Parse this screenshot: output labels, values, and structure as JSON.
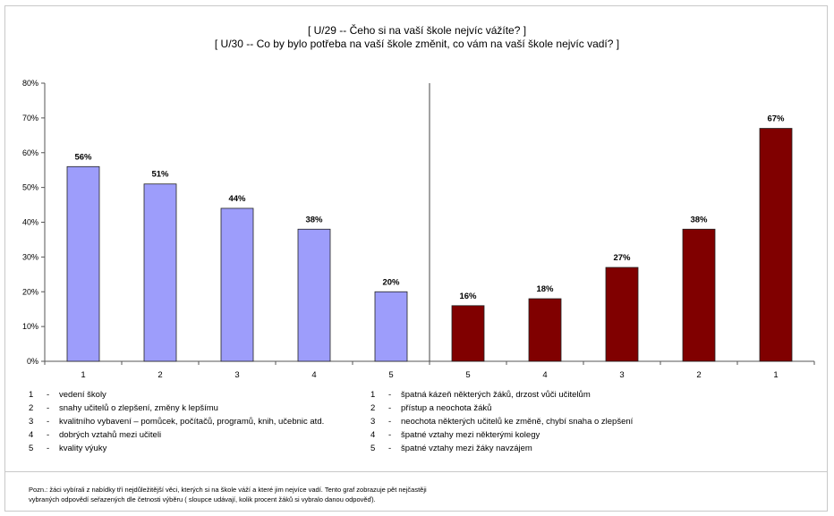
{
  "titles": {
    "line1": "[ U/29 -- Čeho si na vaší škole nejvíc vážíte? ]",
    "line2": "[ U/30 -- Co by bylo potřeba na vaší škole změnit, co vám na vaší škole nejvíc vadí? ]"
  },
  "chart_data": {
    "type": "bar",
    "ylim": [
      0,
      80
    ],
    "yticks": [
      "0%",
      "10%",
      "20%",
      "30%",
      "40%",
      "50%",
      "60%",
      "70%",
      "80%"
    ],
    "categories": [
      "1",
      "2",
      "3",
      "4",
      "5",
      "5",
      "4",
      "3",
      "2",
      "1"
    ],
    "series": [
      {
        "values": [
          56,
          51,
          44,
          38,
          20,
          null,
          null,
          null,
          null,
          null
        ],
        "labels": [
          "56%",
          "51%",
          "44%",
          "38%",
          "20%",
          "",
          "",
          "",
          "",
          ""
        ],
        "color": "#9d9dfb"
      },
      {
        "values": [
          null,
          null,
          null,
          null,
          null,
          16,
          18,
          27,
          38,
          67
        ],
        "labels": [
          "",
          "",
          "",
          "",
          "",
          "16%",
          "18%",
          "27%",
          "38%",
          "67%"
        ],
        "color": "#800000"
      }
    ],
    "grid": false
  },
  "legend_left": [
    {
      "num": "1",
      "text": "vedení školy"
    },
    {
      "num": "2",
      "text": "snahy učitelů o zlepšení, změny k lepšímu"
    },
    {
      "num": "3",
      "text": "kvalitního vybavení – pomůcek, počítačů, programů, knih, učebnic atd."
    },
    {
      "num": "4",
      "text": "dobrých vztahů mezi učiteli"
    },
    {
      "num": "5",
      "text": "kvality výuky"
    }
  ],
  "legend_right": [
    {
      "num": "1",
      "text": "špatná kázeň některých žáků, drzost vůči učitelům"
    },
    {
      "num": "2",
      "text": "přístup a neochota žáků"
    },
    {
      "num": "3",
      "text": "neochota některých učitelů ke změně, chybí snaha o zlepšení"
    },
    {
      "num": "4",
      "text": "špatné vztahy mezi některými kolegy"
    },
    {
      "num": "5",
      "text": "špatné vztahy mezi žáky navzájem"
    }
  ],
  "note": {
    "line1": "Pozn.: žáci vybírali z nabídky tří nejdůležitější věci, kterých si na škole váží a které jim nejvíce vadí. Tento graf zobrazuje pět nejčastěji",
    "line2": "vybraných odpovědí seřazených dle četnosti výběru ( sloupce udávají, kolik procent žáků si vybralo danou odpověď)."
  }
}
